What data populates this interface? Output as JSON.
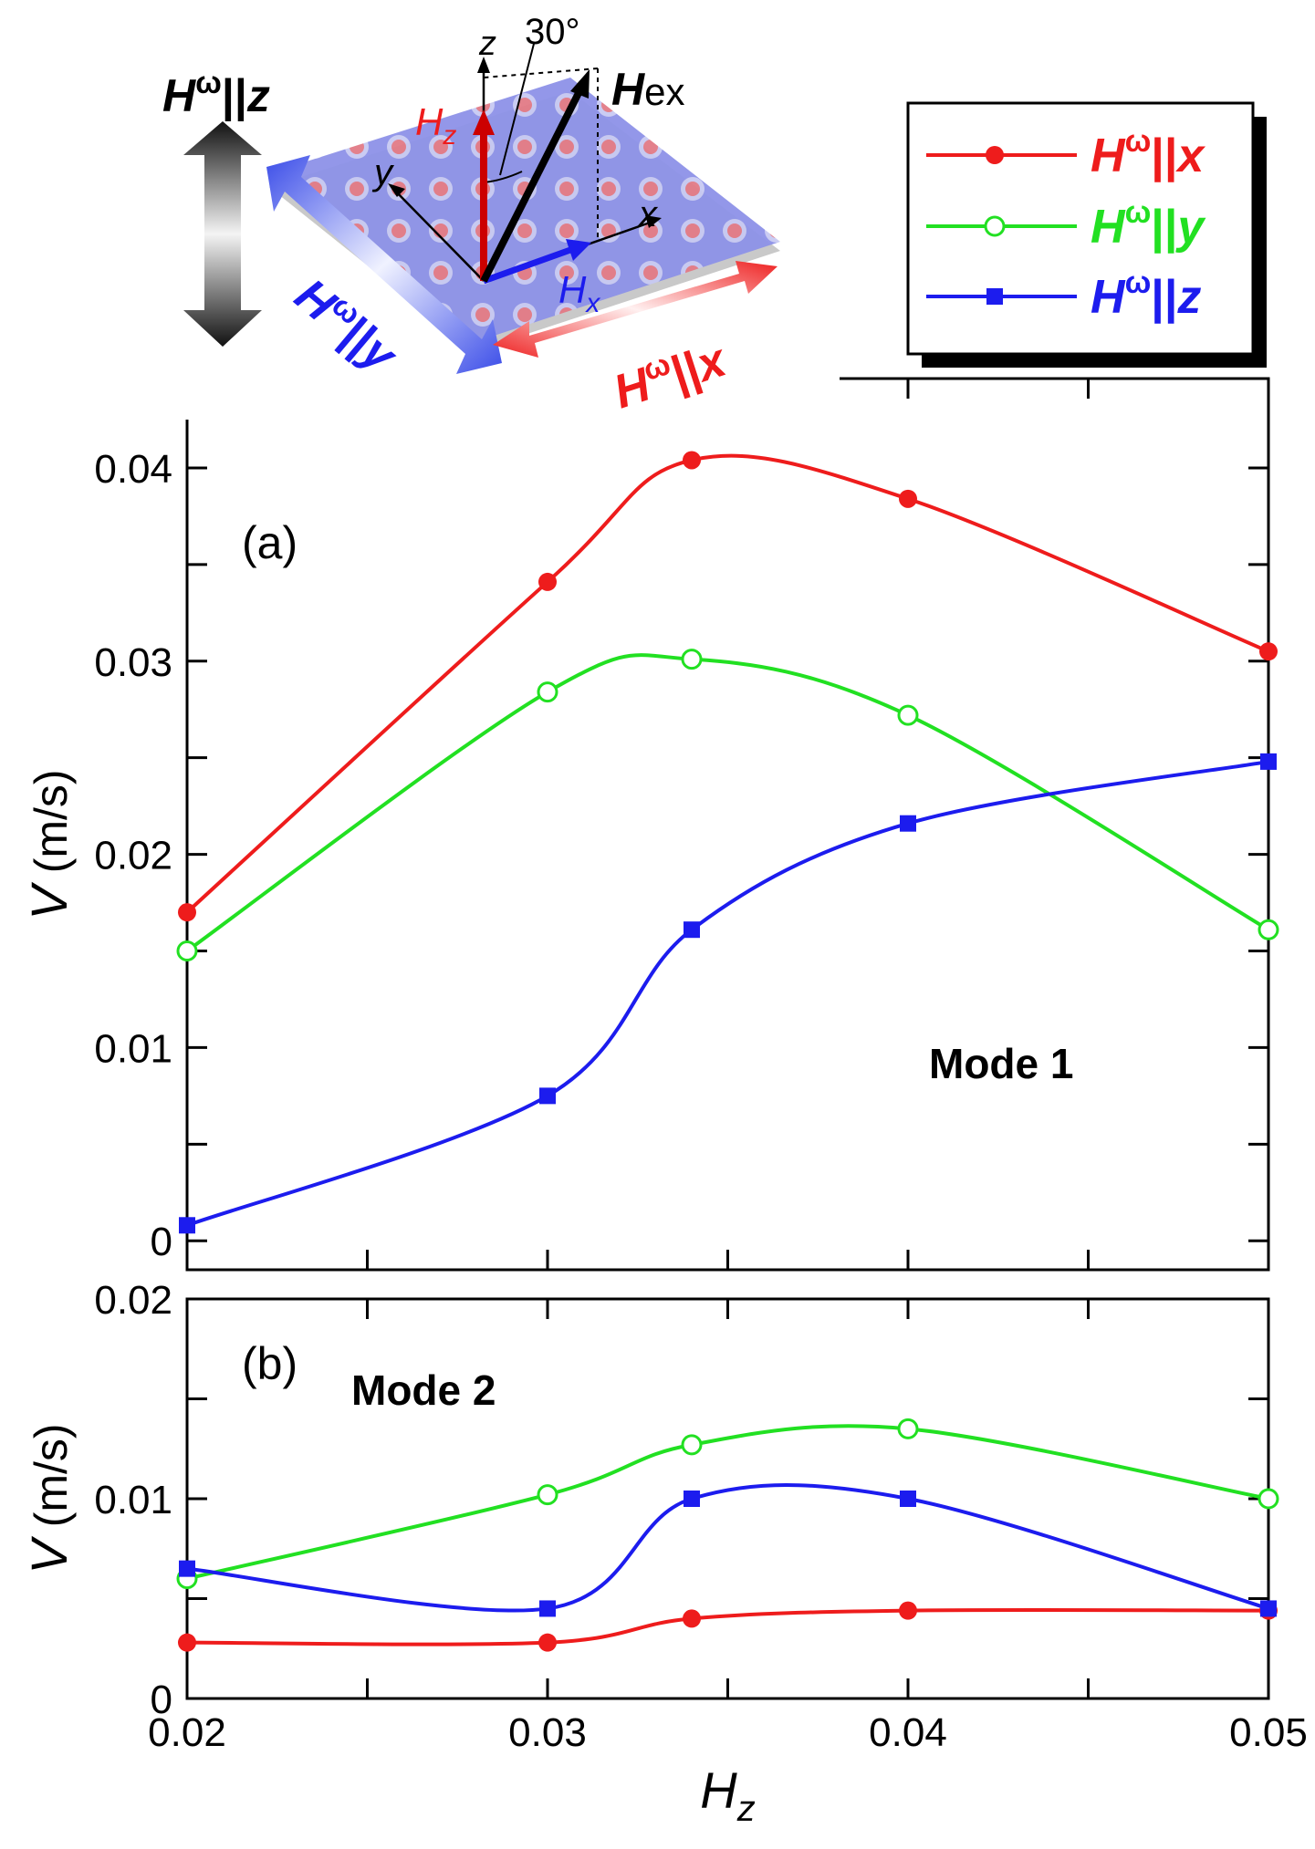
{
  "colors": {
    "red": "#ee1c1c",
    "green": "#22e022",
    "blue": "#1c1cee",
    "black": "#000000"
  },
  "inset": {
    "angle_label": "30°",
    "hex_main": "H",
    "hex_sub": "ex",
    "hz_main": "H",
    "hz_sub": "z",
    "hx_main": "H",
    "hx_sub": "x",
    "axis_x": "x",
    "axis_y": "y",
    "axis_z": "z",
    "h_main": "H",
    "h_sup": "ω",
    "parallel": "||",
    "label_x_axis": "x",
    "label_y_axis": "y",
    "label_z_axis": "z"
  },
  "legend": {
    "items": [
      {
        "main": "H",
        "sup": "ω",
        "par": "||",
        "axis": "x",
        "color": "#ee1c1c",
        "marker": "filled-circle"
      },
      {
        "main": "H",
        "sup": "ω",
        "par": "||",
        "axis": "y",
        "color": "#22e022",
        "marker": "open-circle"
      },
      {
        "main": "H",
        "sup": "ω",
        "par": "||",
        "axis": "z",
        "color": "#1c1cee",
        "marker": "filled-square"
      }
    ]
  },
  "chart_data": [
    {
      "type": "line",
      "panel_label": "(a)",
      "annotation": "Mode 1",
      "ylabel_main": "V",
      "ylabel_unit": " (m/s)",
      "xlim": [
        0.02,
        0.05
      ],
      "ylim": [
        -0.0015,
        0.0425
      ],
      "yticks_labeled": [
        "0",
        "0.01",
        "0.02",
        "0.03",
        "0.04"
      ],
      "yticks_labeled_values": [
        0,
        0.01,
        0.02,
        0.03,
        0.04
      ],
      "ytick_step": 0.005,
      "xtick_step": 0.005,
      "x": [
        0.02,
        0.03,
        0.034,
        0.04,
        0.05
      ],
      "series": [
        {
          "name": "Hω||x",
          "color": "#ee1c1c",
          "marker": "filled-circle",
          "values": [
            0.017,
            0.0341,
            0.0404,
            0.0384,
            0.0305
          ]
        },
        {
          "name": "Hω||y",
          "color": "#22e022",
          "marker": "open-circle",
          "values": [
            0.015,
            0.0284,
            0.0301,
            0.0272,
            0.0161
          ]
        },
        {
          "name": "Hω||z",
          "color": "#1c1cee",
          "marker": "filled-square",
          "values": [
            0.0008,
            0.0075,
            0.0161,
            0.0216,
            0.0248
          ]
        }
      ]
    },
    {
      "type": "line",
      "panel_label": "(b)",
      "annotation": "Mode 2",
      "ylabel_main": "V",
      "ylabel_unit": " (m/s)",
      "xlabel_main": "H",
      "xlabel_sub": "z",
      "xlim": [
        0.02,
        0.05
      ],
      "ylim": [
        0,
        0.02
      ],
      "yticks_labeled": [
        "0",
        "0.01",
        "0.02"
      ],
      "yticks_labeled_values": [
        0,
        0.01,
        0.02
      ],
      "ytick_step": 0.005,
      "xticks_labeled": [
        "0.02",
        "0.03",
        "0.04",
        "0.05"
      ],
      "xticks_labeled_values": [
        0.02,
        0.03,
        0.04,
        0.05
      ],
      "xtick_step": 0.005,
      "x": [
        0.02,
        0.03,
        0.034,
        0.04,
        0.05
      ],
      "series": [
        {
          "name": "Hω||x",
          "color": "#ee1c1c",
          "marker": "filled-circle",
          "values": [
            0.0028,
            0.0028,
            0.004,
            0.0044,
            0.0044
          ]
        },
        {
          "name": "Hω||y",
          "color": "#22e022",
          "marker": "open-circle",
          "values": [
            0.006,
            0.0102,
            0.0127,
            0.0135,
            0.01
          ]
        },
        {
          "name": "Hω||z",
          "color": "#1c1cee",
          "marker": "filled-square",
          "values": [
            0.0065,
            0.0045,
            0.01,
            0.01,
            0.0045
          ]
        }
      ]
    }
  ]
}
